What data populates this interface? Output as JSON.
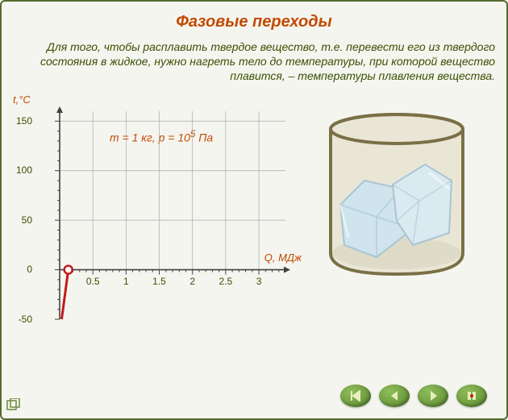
{
  "title": "Фазовые переходы",
  "description": "Для того, чтобы расплавить твердое вещество, т.е. перевести его из твердого состояния в жидкое, нужно нагреть тело до температуры, при которой вещество плавится, – температуры плавления вещества.",
  "chart": {
    "type": "line",
    "y_axis_label": "t,°C",
    "x_axis_label": "Q, МДж",
    "params_html": "m = 1 кг,  p = 10<sup>5</sup> Па",
    "xlim": [
      0,
      3.4
    ],
    "ylim": [
      -50,
      160
    ],
    "y_ticks": [
      150,
      100,
      50,
      0,
      -50
    ],
    "x_ticks": [
      0.5,
      1,
      1.5,
      2,
      2.5,
      3
    ],
    "y_major_step": 50,
    "y_minor_step": 10,
    "x_major_step": 0.5,
    "x_minor_step": 0.1,
    "grid_color": "#a8a8a8",
    "axis_color": "#404040",
    "line_color": "#c21a1a",
    "line_width": 3,
    "marker_color": "#c21a1a",
    "marker_fill": "#ffffff",
    "marker_radius": 5,
    "start_point": [
      0.03,
      -50
    ],
    "end_point": [
      0.13,
      0
    ],
    "background_color": "#f5f5f0"
  },
  "illustration": {
    "beaker_border": "#7a7046",
    "beaker_fill": "#eae6d6",
    "ice_fill": "#cfe4ec",
    "ice_edge": "#a8c5d4"
  },
  "controls": {
    "button_bg": "#6fa03a",
    "icon_color": "#e6efb8",
    "items": [
      {
        "name": "first-button",
        "icon": "first"
      },
      {
        "name": "prev-button",
        "icon": "prev"
      },
      {
        "name": "play-button",
        "icon": "play"
      },
      {
        "name": "record-button",
        "icon": "record"
      }
    ]
  },
  "colors": {
    "title_color": "#c24a00",
    "text_color": "#3a4f00",
    "frame_border": "#556b2f"
  }
}
